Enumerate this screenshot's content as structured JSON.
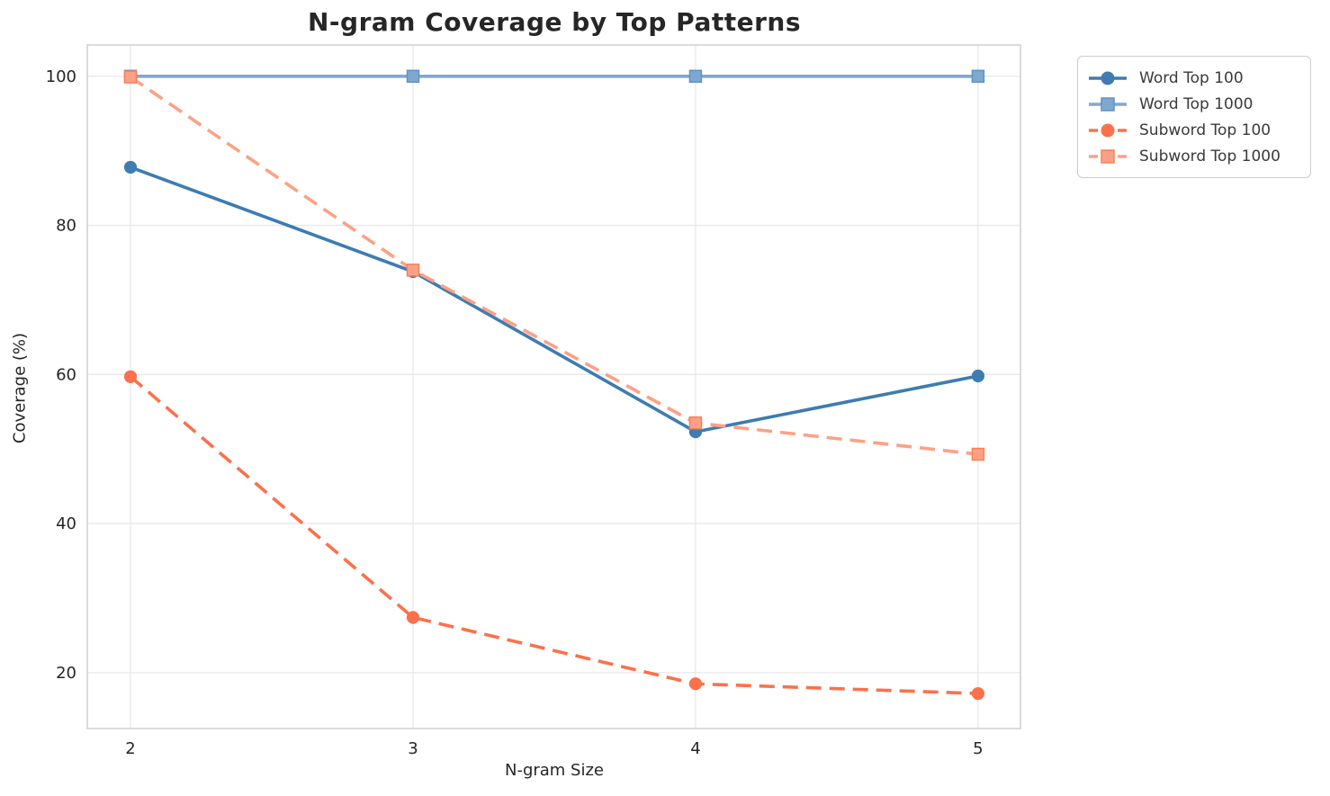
{
  "chart_data": {
    "type": "line",
    "title": "N-gram Coverage by Top Patterns",
    "xlabel": "N-gram Size",
    "ylabel": "Coverage (%)",
    "x": [
      2,
      3,
      4,
      5
    ],
    "xticks": [
      "2",
      "3",
      "4",
      "5"
    ],
    "yticks": [
      20,
      40,
      60,
      80,
      100
    ],
    "xlim": [
      1.847,
      5.15
    ],
    "ylim": [
      12.5,
      104.2
    ],
    "grid": true,
    "legend_position": "outside-upper-right",
    "series": [
      {
        "name": "Word Top 100",
        "color": "#3e7cb1",
        "linestyle": "solid",
        "marker": "circle",
        "marker_edge": "#3e7cb1",
        "values": [
          87.8,
          73.8,
          52.3,
          59.8
        ]
      },
      {
        "name": "Word Top 1000",
        "color": "#7fa8d0",
        "linestyle": "solid",
        "marker": "square",
        "marker_edge": "#6292c1",
        "values": [
          100.0,
          100.0,
          100.0,
          100.0
        ]
      },
      {
        "name": "Subword Top 100",
        "color": "#fb714b",
        "linestyle": "dashed",
        "marker": "circle",
        "marker_edge": "#fb714b",
        "values": [
          59.7,
          27.4,
          18.5,
          17.2
        ]
      },
      {
        "name": "Subword Top 1000",
        "color": "#fca186",
        "linestyle": "dashed",
        "marker": "square",
        "marker_edge": "#f98059",
        "values": [
          99.9,
          74.0,
          53.5,
          49.3
        ]
      }
    ],
    "style": {
      "background": "#ffffff",
      "grid_color": "#e8e8e8",
      "spine_color": "#d2d2d2",
      "text_color": "#262626",
      "legend_border_color": "#cccccc"
    }
  }
}
